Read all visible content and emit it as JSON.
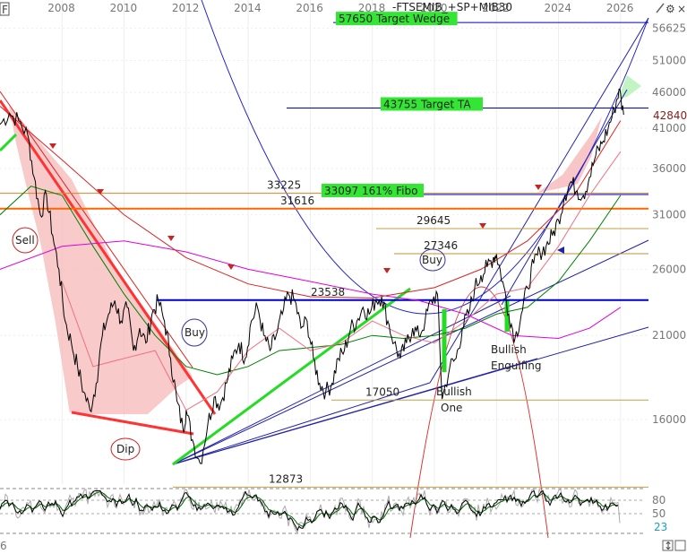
{
  "chart_data": {
    "type": "line",
    "title": "-FTSEMIB_+SP+MIB30",
    "x_axis": {
      "start_year": 2006,
      "end_year": 2026.9,
      "tick_labels": [
        "2008",
        "2010",
        "2012",
        "2014",
        "2016",
        "2018",
        "2020",
        "2022",
        "2024",
        "2026"
      ]
    },
    "y_axis": {
      "scale": "log",
      "range": [
        13000,
        62000
      ],
      "tick_labels": [
        "56625",
        "51000",
        "46000",
        "41000",
        "36000",
        "31000",
        "26000",
        "21000",
        "16000"
      ]
    },
    "price": {
      "last_label": "42840",
      "color": "#000000",
      "points": [
        [
          2006.0,
          41500
        ],
        [
          2006.3,
          43000
        ],
        [
          2006.6,
          42000
        ],
        [
          2006.9,
          40000
        ],
        [
          2007.1,
          35000
        ],
        [
          2007.3,
          31000
        ],
        [
          2007.5,
          33000
        ],
        [
          2007.7,
          29000
        ],
        [
          2007.9,
          26000
        ],
        [
          2008.1,
          22000
        ],
        [
          2008.3,
          20500
        ],
        [
          2008.5,
          19000
        ],
        [
          2008.7,
          17500
        ],
        [
          2008.9,
          16500
        ],
        [
          2009.1,
          18000
        ],
        [
          2009.3,
          21000
        ],
        [
          2009.5,
          22500
        ],
        [
          2009.7,
          23500
        ],
        [
          2009.9,
          22000
        ],
        [
          2010.1,
          23000
        ],
        [
          2010.3,
          20000
        ],
        [
          2010.5,
          21500
        ],
        [
          2010.7,
          20500
        ],
        [
          2010.9,
          22500
        ],
        [
          2011.1,
          23500
        ],
        [
          2011.3,
          22000
        ],
        [
          2011.5,
          19500
        ],
        [
          2011.7,
          17000
        ],
        [
          2011.9,
          15500
        ],
        [
          2012.0,
          16500
        ],
        [
          2012.2,
          15000
        ],
        [
          2012.45,
          13900
        ],
        [
          2012.7,
          15800
        ],
        [
          2012.9,
          17200
        ],
        [
          2013.1,
          16800
        ],
        [
          2013.3,
          18000
        ],
        [
          2013.5,
          19500
        ],
        [
          2013.7,
          20500
        ],
        [
          2013.9,
          19500
        ],
        [
          2014.1,
          22000
        ],
        [
          2014.3,
          23000
        ],
        [
          2014.5,
          21000
        ],
        [
          2014.7,
          20000
        ],
        [
          2014.9,
          21000
        ],
        [
          2015.1,
          22500
        ],
        [
          2015.3,
          24000
        ],
        [
          2015.5,
          23500
        ],
        [
          2015.7,
          21500
        ],
        [
          2015.9,
          22000
        ],
        [
          2016.1,
          19500
        ],
        [
          2016.3,
          18000
        ],
        [
          2016.5,
          17500
        ],
        [
          2016.7,
          18000
        ],
        [
          2016.9,
          19500
        ],
        [
          2017.1,
          20000
        ],
        [
          2017.3,
          21500
        ],
        [
          2017.5,
          22000
        ],
        [
          2017.7,
          23000
        ],
        [
          2017.9,
          22500
        ],
        [
          2018.1,
          23500
        ],
        [
          2018.3,
          23800
        ],
        [
          2018.5,
          22000
        ],
        [
          2018.7,
          20500
        ],
        [
          2018.9,
          19500
        ],
        [
          2019.1,
          20500
        ],
        [
          2019.3,
          21500
        ],
        [
          2019.5,
          21000
        ],
        [
          2019.7,
          22000
        ],
        [
          2019.9,
          23500
        ],
        [
          2020.1,
          24000
        ],
        [
          2020.25,
          17100
        ],
        [
          2020.5,
          19000
        ],
        [
          2020.7,
          19500
        ],
        [
          2020.9,
          21500
        ],
        [
          2021.1,
          22500
        ],
        [
          2021.3,
          24500
        ],
        [
          2021.5,
          25500
        ],
        [
          2021.7,
          26200
        ],
        [
          2021.9,
          27000
        ],
        [
          2022.0,
          27300
        ],
        [
          2022.2,
          25000
        ],
        [
          2022.4,
          22500
        ],
        [
          2022.6,
          20800
        ],
        [
          2022.8,
          22500
        ],
        [
          2023.0,
          24500
        ],
        [
          2023.2,
          26500
        ],
        [
          2023.4,
          27500
        ],
        [
          2023.6,
          28000
        ],
        [
          2023.8,
          29000
        ],
        [
          2024.0,
          30500
        ],
        [
          2024.2,
          33000
        ],
        [
          2024.4,
          34500
        ],
        [
          2024.6,
          33500
        ],
        [
          2024.8,
          33000
        ],
        [
          2025.0,
          35000
        ],
        [
          2025.2,
          37500
        ],
        [
          2025.4,
          39000
        ],
        [
          2025.6,
          41000
        ],
        [
          2025.8,
          43500
        ],
        [
          2025.95,
          46500
        ],
        [
          2026.1,
          42800
        ]
      ]
    },
    "moving_averages": [
      {
        "color": "#008000",
        "points": [
          [
            2006.0,
            31000
          ],
          [
            2007.0,
            34000
          ],
          [
            2008.0,
            33000
          ],
          [
            2009.0,
            28000
          ],
          [
            2010.0,
            24000
          ],
          [
            2011.0,
            21000
          ],
          [
            2012.0,
            19000
          ],
          [
            2013.0,
            18500
          ],
          [
            2014.0,
            19000
          ],
          [
            2015.0,
            20000
          ],
          [
            2016.0,
            20200
          ],
          [
            2017.0,
            20400
          ],
          [
            2018.0,
            21000
          ],
          [
            2019.0,
            20800
          ],
          [
            2020.0,
            21000
          ],
          [
            2021.0,
            21500
          ],
          [
            2022.0,
            22500
          ],
          [
            2023.0,
            23000
          ],
          [
            2024.0,
            25000
          ],
          [
            2025.0,
            28500
          ],
          [
            2026.0,
            33000
          ]
        ]
      },
      {
        "color": "#e000e0",
        "points": [
          [
            2006.0,
            26000
          ],
          [
            2008.0,
            28000
          ],
          [
            2010.0,
            28500
          ],
          [
            2012.0,
            27500
          ],
          [
            2014.0,
            26000
          ],
          [
            2016.0,
            25000
          ],
          [
            2018.0,
            24000
          ],
          [
            2019.5,
            23500
          ],
          [
            2021.0,
            22500
          ],
          [
            2022.5,
            21000
          ],
          [
            2024.0,
            20800
          ],
          [
            2025.0,
            21500
          ],
          [
            2026.0,
            23000
          ]
        ]
      },
      {
        "color": "#f07080",
        "points": [
          [
            2008.0,
            25000
          ],
          [
            2009.0,
            19000
          ],
          [
            2010.0,
            19500
          ],
          [
            2011.0,
            20000
          ],
          [
            2012.0,
            16500
          ],
          [
            2013.0,
            17500
          ],
          [
            2014.0,
            20000
          ],
          [
            2015.0,
            21500
          ],
          [
            2016.0,
            20000
          ],
          [
            2017.0,
            20500
          ],
          [
            2018.0,
            22000
          ],
          [
            2019.0,
            21000
          ],
          [
            2020.0,
            20500
          ],
          [
            2021.0,
            22000
          ],
          [
            2022.0,
            24000
          ],
          [
            2023.0,
            24500
          ],
          [
            2024.0,
            28000
          ],
          [
            2025.0,
            33000
          ],
          [
            2026.0,
            38000
          ]
        ]
      },
      {
        "color": "#dd2222",
        "points": [
          [
            2006.0,
            44000
          ],
          [
            2008.0,
            37000
          ],
          [
            2010.0,
            31000
          ],
          [
            2012.0,
            27000
          ],
          [
            2014.0,
            24800
          ],
          [
            2016.0,
            23800
          ],
          [
            2018.0,
            23700
          ],
          [
            2020.0,
            24500
          ],
          [
            2021.5,
            26000
          ],
          [
            2023.0,
            28500
          ],
          [
            2024.5,
            33000
          ],
          [
            2026.0,
            42000
          ]
        ]
      }
    ],
    "levels": [
      {
        "value": 57650,
        "label": "57650 Target Wedge",
        "color": "#0000cc",
        "highlight": true
      },
      {
        "value": 43755,
        "label": "43755 Target TA",
        "color": "#0000cc",
        "highlight": true
      },
      {
        "value": 33225,
        "label": "33225",
        "color": "#e08020",
        "highlight": false
      },
      {
        "value": 33097,
        "label": "33097 161% Fibo",
        "color": "#0000cc",
        "highlight": true
      },
      {
        "value": 31616,
        "label": "31616",
        "color": "#ff6600",
        "highlight": false
      },
      {
        "value": 29645,
        "label": "29645",
        "color": "#c0a040",
        "highlight": false
      },
      {
        "value": 27346,
        "label": "27346",
        "color": "#c09030",
        "highlight": false
      },
      {
        "value": 23538,
        "label": "23538",
        "color": "#0000cc",
        "highlight": false
      },
      {
        "value": 17050,
        "label": "17050",
        "color": "#c0a040",
        "highlight": false
      },
      {
        "value": 12873,
        "label": "12873",
        "color": "#c0a040",
        "highlight": false
      }
    ],
    "annotations": {
      "sell": "Sell",
      "buy1": "Buy",
      "buy2": "Buy",
      "dip": "Dip",
      "bullish_one": [
        "Bullish",
        "One"
      ],
      "bullish_engulfing": [
        "Bullish",
        "Engulfing"
      ]
    },
    "oscillator": {
      "levels": [
        "80",
        "50"
      ],
      "last_value": "23",
      "bottom_label": "6"
    },
    "toolbar": {
      "icons": [
        "pencil-icon",
        "settings-icon",
        "close-icon"
      ]
    }
  }
}
